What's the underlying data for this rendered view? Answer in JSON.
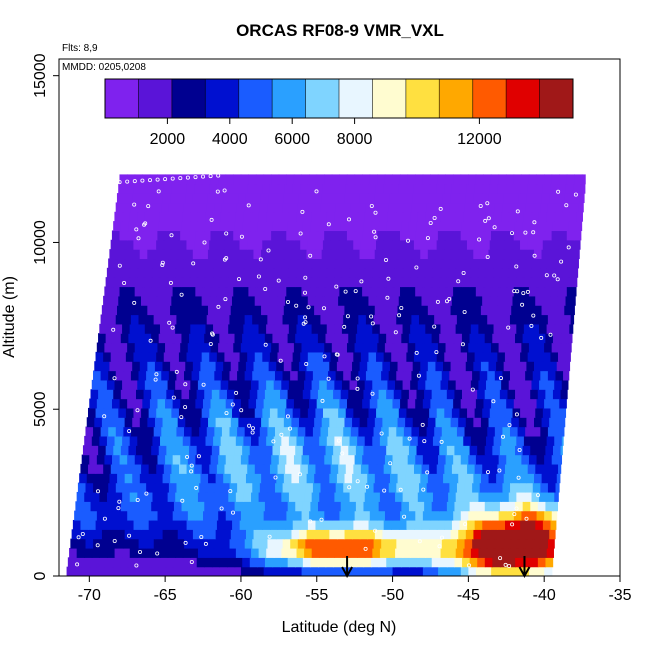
{
  "chart_data": {
    "type": "heatmap",
    "title": "ORCAS RF08-9 VMR_VXL",
    "xlabel": "Latitude (deg N)",
    "ylabel": "Altitude (m)",
    "xlim": [
      -72,
      -35
    ],
    "ylim": [
      0,
      15500
    ],
    "x_ticks": [
      -70,
      -65,
      -60,
      -55,
      -50,
      -45,
      -40,
      -35
    ],
    "x_tick_labels": [
      "-70",
      "-65",
      "-60",
      "-55",
      "-50",
      "-45",
      "-40",
      "-35"
    ],
    "y_ticks": [
      0,
      5000,
      10000,
      15000
    ],
    "y_tick_labels": [
      "0",
      "5000",
      "10000",
      "15000"
    ],
    "annotations": {
      "flights": "Flts: 8,9",
      "dates": "MMDD: 0205,0208"
    },
    "colorbar": {
      "range": [
        0,
        15000
      ],
      "ticks": [
        2000,
        4000,
        6000,
        8000,
        12000
      ],
      "tick_labels": [
        "2000",
        "4000",
        "6000",
        "8000",
        "12000"
      ],
      "colors": [
        "#7f22ee",
        "#5a14d8",
        "#000090",
        "#0010d0",
        "#1a5cff",
        "#2aa0ff",
        "#7fd4ff",
        "#e8f6ff",
        "#fffcd0",
        "#ffe040",
        "#ffa800",
        "#ff5a00",
        "#e00000",
        "#a01818"
      ]
    },
    "arrows_latitude": [
      -53,
      -41.3
    ],
    "grid": false,
    "legend": "colorbar top"
  }
}
